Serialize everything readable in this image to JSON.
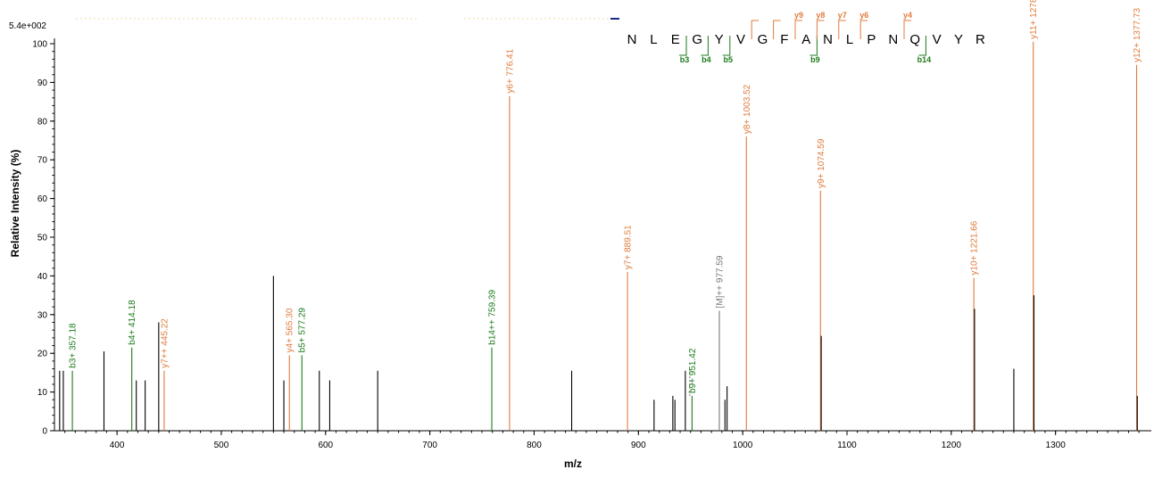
{
  "chart_data": {
    "type": "bar",
    "max_intensity_label": "5.4e+002",
    "xlabel": "m/z",
    "ylabel": "Relative  Intensity (%)",
    "xlim": [
      340,
      1385
    ],
    "ylim": [
      0,
      100
    ],
    "x_ticks": [
      400,
      500,
      600,
      700,
      800,
      900,
      1000,
      1100,
      1200,
      1300
    ],
    "y_ticks": [
      0,
      10,
      20,
      30,
      40,
      50,
      60,
      70,
      80,
      90,
      100
    ],
    "colors": {
      "b": "#1a7a1a",
      "y": "#e07b3c",
      "precursor": "#777777",
      "other": "#000000"
    },
    "peaks": [
      {
        "mz": 345.0,
        "intensity": 15.5,
        "ion": "other"
      },
      {
        "mz": 348.5,
        "intensity": 15.5,
        "ion": "other"
      },
      {
        "mz": 357.18,
        "intensity": 15.5,
        "ion": "b",
        "label": "b3+ 357.18"
      },
      {
        "mz": 387.5,
        "intensity": 20.5,
        "ion": "other"
      },
      {
        "mz": 414.18,
        "intensity": 21.5,
        "ion": "b",
        "label": "b4+ 414.18"
      },
      {
        "mz": 418.5,
        "intensity": 13.0,
        "ion": "other"
      },
      {
        "mz": 427.0,
        "intensity": 13.0,
        "ion": "other"
      },
      {
        "mz": 440.0,
        "intensity": 28.0,
        "ion": "other"
      },
      {
        "mz": 445.22,
        "intensity": 15.5,
        "ion": "y",
        "label": "y7++ 445.22"
      },
      {
        "mz": 550.0,
        "intensity": 40.0,
        "ion": "other"
      },
      {
        "mz": 560.0,
        "intensity": 13.0,
        "ion": "other"
      },
      {
        "mz": 565.3,
        "intensity": 19.5,
        "ion": "y",
        "label": "y4+ 565.30"
      },
      {
        "mz": 577.29,
        "intensity": 19.5,
        "ion": "b",
        "label": "b5+ 577.29"
      },
      {
        "mz": 594.0,
        "intensity": 15.5,
        "ion": "other"
      },
      {
        "mz": 604.0,
        "intensity": 13.0,
        "ion": "other"
      },
      {
        "mz": 650.0,
        "intensity": 15.5,
        "ion": "other"
      },
      {
        "mz": 759.39,
        "intensity": 21.5,
        "ion": "b",
        "label": "b14++ 759.39"
      },
      {
        "mz": 776.41,
        "intensity": 86.5,
        "ion": "y",
        "label": "y6+ 776.41"
      },
      {
        "mz": 836.0,
        "intensity": 15.5,
        "ion": "other"
      },
      {
        "mz": 889.51,
        "intensity": 41.0,
        "ion": "y",
        "label": "y7+ 889.51"
      },
      {
        "mz": 915.0,
        "intensity": 8.0,
        "ion": "other"
      },
      {
        "mz": 933.0,
        "intensity": 9.0,
        "ion": "other"
      },
      {
        "mz": 935.0,
        "intensity": 8.0,
        "ion": "other"
      },
      {
        "mz": 945.0,
        "intensity": 15.5,
        "ion": "other"
      },
      {
        "mz": 951.42,
        "intensity": 9.0,
        "ion": "b",
        "label": "b9+ 951.42"
      },
      {
        "mz": 977.59,
        "intensity": 31.0,
        "ion": "precursor",
        "label": "[M]++ 977.59"
      },
      {
        "mz": 983.0,
        "intensity": 8.0,
        "ion": "other"
      },
      {
        "mz": 985.0,
        "intensity": 11.5,
        "ion": "other"
      },
      {
        "mz": 1003.52,
        "intensity": 76.0,
        "ion": "y",
        "label": "y8+ 1003.52"
      },
      {
        "mz": 1074.59,
        "intensity": 62.0,
        "ion": "y",
        "label": "y9+ 1074.59"
      },
      {
        "mz": 1075.3,
        "intensity": 24.5,
        "ion": "other"
      },
      {
        "mz": 1221.66,
        "intensity": 39.5,
        "ion": "y",
        "label": "y10+ 1221.66"
      },
      {
        "mz": 1222.3,
        "intensity": 31.5,
        "ion": "other"
      },
      {
        "mz": 1260.0,
        "intensity": 16.0,
        "ion": "other"
      },
      {
        "mz": 1278.64,
        "intensity": 100.5,
        "ion": "y",
        "label": "y11+ 1278.64"
      },
      {
        "mz": 1279.3,
        "intensity": 35.0,
        "ion": "other"
      },
      {
        "mz": 1377.73,
        "intensity": 94.5,
        "ion": "y",
        "label": "y12+ 1377.73"
      },
      {
        "mz": 1378.4,
        "intensity": 9.0,
        "ion": "other"
      }
    ],
    "sequence": [
      "N",
      "L",
      "E",
      "G",
      "Y",
      "V",
      "G",
      "F",
      "A",
      "N",
      "L",
      "P",
      "N",
      "Q",
      "V",
      "Y",
      "R"
    ],
    "b_ions": [
      {
        "after": 3,
        "label": "b3"
      },
      {
        "after": 4,
        "label": "b4"
      },
      {
        "after": 5,
        "label": "b5"
      },
      {
        "after": 9,
        "label": "b9"
      },
      {
        "after": 14,
        "label": "b14"
      }
    ],
    "y_ions": [
      {
        "before": 6,
        "label": ""
      },
      {
        "before": 7,
        "label": ""
      },
      {
        "before": 8,
        "label": "y9"
      },
      {
        "before": 9,
        "label": "y8"
      },
      {
        "before": 10,
        "label": "y7"
      },
      {
        "before": 11,
        "label": "y6"
      },
      {
        "before": 13,
        "label": "y4"
      }
    ]
  }
}
